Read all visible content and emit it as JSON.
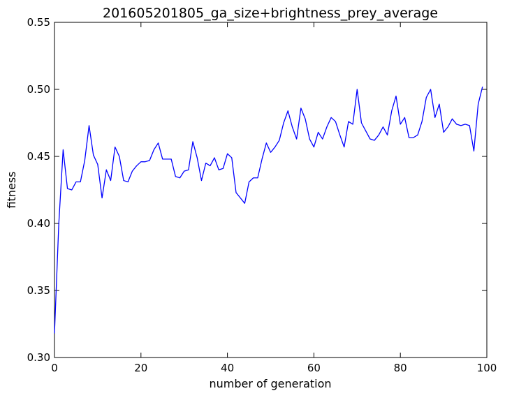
{
  "chart_data": {
    "type": "line",
    "title": "201605201805_ga_size+brightness_prey_average",
    "xlabel": "number of generation",
    "ylabel": "fitness",
    "xlim": [
      0,
      100
    ],
    "ylim": [
      0.3,
      0.55
    ],
    "x_ticks": [
      "0",
      "20",
      "40",
      "60",
      "80",
      "100"
    ],
    "y_ticks": [
      "0.30",
      "0.35",
      "0.40",
      "0.45",
      "0.50",
      "0.55"
    ],
    "grid": false,
    "line_color": "#0000ff",
    "series": [
      {
        "values": [
          0.318,
          0.4,
          0.455,
          0.426,
          0.425,
          0.431,
          0.431,
          0.447,
          0.473,
          0.451,
          0.444,
          0.419,
          0.44,
          0.432,
          0.457,
          0.45,
          0.432,
          0.431,
          0.439,
          0.443,
          0.446,
          0.446,
          0.447,
          0.455,
          0.46,
          0.448,
          0.448,
          0.448,
          0.435,
          0.434,
          0.439,
          0.44,
          0.461,
          0.449,
          0.432,
          0.445,
          0.443,
          0.449,
          0.44,
          0.441,
          0.452,
          0.449,
          0.423,
          0.419,
          0.415,
          0.431,
          0.434,
          0.434,
          0.448,
          0.46,
          0.453,
          0.457,
          0.462,
          0.475,
          0.484,
          0.472,
          0.463,
          0.486,
          0.478,
          0.463,
          0.457,
          0.468,
          0.463,
          0.472,
          0.479,
          0.476,
          0.466,
          0.457,
          0.476,
          0.474,
          0.5,
          0.475,
          0.469,
          0.463,
          0.462,
          0.466,
          0.472,
          0.466,
          0.484,
          0.495,
          0.474,
          0.479,
          0.464,
          0.464,
          0.466,
          0.476,
          0.494,
          0.5,
          0.479,
          0.489,
          0.468,
          0.472,
          0.478,
          0.474,
          0.473,
          0.474,
          0.473,
          0.454,
          0.489,
          0.502
        ]
      }
    ]
  }
}
